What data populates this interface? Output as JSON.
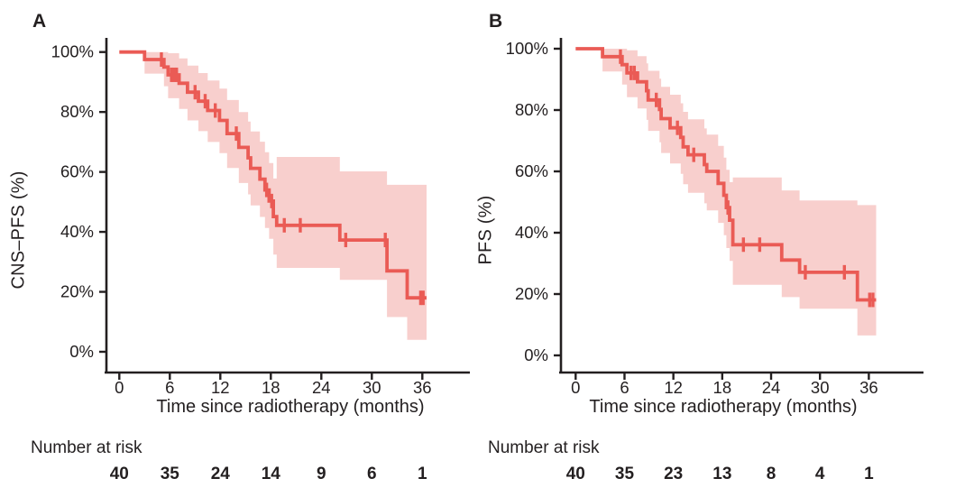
{
  "figure": {
    "title": "",
    "line_color": "#ea5b55",
    "band_color": "#f8cfcd",
    "text_color": "#231f20",
    "axis_color": "#231f20",
    "background": "#ffffff"
  },
  "chart_data": [
    {
      "type": "line",
      "subtype": "kaplan-meier-step",
      "panel_label": "A",
      "series_name": "CNS-PFS",
      "ylabel": "CNS–PFS (%)",
      "xlabel": "Time since radiotherapy (months)",
      "xlim": [
        0,
        38
      ],
      "ylim": [
        0,
        100
      ],
      "grid": false,
      "legend": null,
      "x_tick_values": [
        0,
        6,
        12,
        18,
        24,
        30,
        36
      ],
      "y_tick_values": [
        0,
        20,
        40,
        60,
        80,
        100
      ],
      "y_tick_labels": [
        "0%",
        "20%",
        "40%",
        "60%",
        "80%",
        "100%"
      ],
      "steps": [
        {
          "t": 0.0,
          "s": 100.0,
          "lo": 100.0,
          "hi": 100.0
        },
        {
          "t": 3.0,
          "s": 97.5,
          "lo": 92.8,
          "hi": 100.0
        },
        {
          "t": 5.3,
          "s": 95.0,
          "lo": 88.6,
          "hi": 100.0
        },
        {
          "t": 5.8,
          "s": 92.4,
          "lo": 84.6,
          "hi": 99.6
        },
        {
          "t": 7.1,
          "s": 89.6,
          "lo": 81.0,
          "hi": 97.9
        },
        {
          "t": 8.1,
          "s": 86.6,
          "lo": 77.2,
          "hi": 95.5
        },
        {
          "t": 9.4,
          "s": 83.6,
          "lo": 73.6,
          "hi": 93.0
        },
        {
          "t": 10.5,
          "s": 80.5,
          "lo": 70.0,
          "hi": 90.5
        },
        {
          "t": 11.9,
          "s": 77.2,
          "lo": 66.3,
          "hi": 87.8
        },
        {
          "t": 12.8,
          "s": 72.8,
          "lo": 61.3,
          "hi": 84.0
        },
        {
          "t": 14.2,
          "s": 68.2,
          "lo": 56.3,
          "hi": 80.0
        },
        {
          "t": 15.3,
          "s": 64.7,
          "lo": 52.5,
          "hi": 76.8
        },
        {
          "t": 15.6,
          "s": 61.2,
          "lo": 48.8,
          "hi": 73.5
        },
        {
          "t": 16.7,
          "s": 57.6,
          "lo": 45.0,
          "hi": 70.1
        },
        {
          "t": 17.3,
          "s": 54.0,
          "lo": 41.3,
          "hi": 66.6
        },
        {
          "t": 17.8,
          "s": 50.3,
          "lo": 37.7,
          "hi": 63.0
        },
        {
          "t": 18.3,
          "s": 45.1,
          "lo": 32.4,
          "hi": 57.8
        },
        {
          "t": 18.7,
          "s": 42.2,
          "lo": 28.0,
          "hi": 65.0
        },
        {
          "t": 26.2,
          "s": 37.3,
          "lo": 24.0,
          "hi": 60.2
        },
        {
          "t": 31.8,
          "s": 27.0,
          "lo": 11.6,
          "hi": 55.7
        },
        {
          "t": 34.2,
          "s": 18.0,
          "lo": 4.0,
          "hi": 55.7
        }
      ],
      "line_end_t": 36.5,
      "censors": [
        [
          5.0,
          97.5
        ],
        [
          6.2,
          92.4
        ],
        [
          6.5,
          92.4
        ],
        [
          6.8,
          92.4
        ],
        [
          9.0,
          86.6
        ],
        [
          10.2,
          83.6
        ],
        [
          11.4,
          80.5
        ],
        [
          13.9,
          72.8
        ],
        [
          17.5,
          54.0
        ],
        [
          18.1,
          50.3
        ],
        [
          19.6,
          42.2
        ],
        [
          21.5,
          42.2
        ],
        [
          26.9,
          37.3
        ],
        [
          31.6,
          37.3
        ],
        [
          35.8,
          18.0
        ],
        [
          36.1,
          18.0
        ]
      ],
      "number_at_risk": {
        "label": "Number at risk",
        "times": [
          0,
          6,
          12,
          18,
          24,
          30,
          36
        ],
        "counts": [
          40,
          35,
          24,
          14,
          9,
          6,
          1
        ]
      }
    },
    {
      "type": "line",
      "subtype": "kaplan-meier-step",
      "panel_label": "B",
      "series_name": "PFS",
      "ylabel": "PFS (%)",
      "xlabel": "Time since radiotherapy (months)",
      "xlim": [
        0,
        38
      ],
      "ylim": [
        0,
        100
      ],
      "grid": false,
      "legend": null,
      "x_tick_values": [
        0,
        6,
        12,
        18,
        24,
        30,
        36
      ],
      "y_tick_values": [
        0,
        20,
        40,
        60,
        80,
        100
      ],
      "y_tick_labels": [
        "0%",
        "20%",
        "40%",
        "60%",
        "80%",
        "100%"
      ],
      "steps": [
        {
          "t": 0.0,
          "s": 100.0,
          "lo": 100.0,
          "hi": 100.0
        },
        {
          "t": 3.3,
          "s": 97.4,
          "lo": 92.6,
          "hi": 100.0
        },
        {
          "t": 5.7,
          "s": 94.8,
          "lo": 88.3,
          "hi": 100.0
        },
        {
          "t": 6.3,
          "s": 92.1,
          "lo": 84.2,
          "hi": 99.5
        },
        {
          "t": 7.6,
          "s": 89.2,
          "lo": 80.5,
          "hi": 97.6
        },
        {
          "t": 8.7,
          "s": 86.3,
          "lo": 76.8,
          "hi": 95.2
        },
        {
          "t": 8.9,
          "s": 83.3,
          "lo": 73.2,
          "hi": 92.8
        },
        {
          "t": 10.3,
          "s": 80.2,
          "lo": 69.5,
          "hi": 90.2
        },
        {
          "t": 10.5,
          "s": 77.2,
          "lo": 66.0,
          "hi": 87.6
        },
        {
          "t": 11.6,
          "s": 74.2,
          "lo": 62.6,
          "hi": 85.0
        },
        {
          "t": 12.9,
          "s": 71.1,
          "lo": 59.2,
          "hi": 82.2
        },
        {
          "t": 13.2,
          "s": 68.0,
          "lo": 55.8,
          "hi": 79.4
        },
        {
          "t": 13.8,
          "s": 65.4,
          "lo": 53.0,
          "hi": 77.0
        },
        {
          "t": 15.8,
          "s": 62.2,
          "lo": 49.6,
          "hi": 74.0
        },
        {
          "t": 16.1,
          "s": 60.0,
          "lo": 47.3,
          "hi": 72.0
        },
        {
          "t": 17.5,
          "s": 56.1,
          "lo": 43.2,
          "hi": 68.3
        },
        {
          "t": 18.2,
          "s": 52.2,
          "lo": 39.2,
          "hi": 64.5
        },
        {
          "t": 18.5,
          "s": 48.2,
          "lo": 35.0,
          "hi": 60.5
        },
        {
          "t": 18.9,
          "s": 44.1,
          "lo": 30.8,
          "hi": 56.5
        },
        {
          "t": 19.3,
          "s": 36.1,
          "lo": 23.0,
          "hi": 58.0
        },
        {
          "t": 25.3,
          "s": 31.1,
          "lo": 19.0,
          "hi": 53.8
        },
        {
          "t": 27.5,
          "s": 27.1,
          "lo": 15.2,
          "hi": 50.5
        },
        {
          "t": 34.6,
          "s": 18.1,
          "lo": 6.5,
          "hi": 49.0
        }
      ],
      "line_end_t": 36.9,
      "censors": [
        [
          5.5,
          97.4
        ],
        [
          6.8,
          92.1
        ],
        [
          7.2,
          92.1
        ],
        [
          9.9,
          83.3
        ],
        [
          12.5,
          74.2
        ],
        [
          14.5,
          65.4
        ],
        [
          18.7,
          48.2
        ],
        [
          20.6,
          36.1
        ],
        [
          22.6,
          36.1
        ],
        [
          28.2,
          27.1
        ],
        [
          33.0,
          27.1
        ],
        [
          36.1,
          18.1
        ],
        [
          36.5,
          18.1
        ]
      ],
      "number_at_risk": {
        "label": "Number at risk",
        "times": [
          0,
          6,
          12,
          18,
          24,
          30,
          36
        ],
        "counts": [
          40,
          35,
          23,
          13,
          8,
          4,
          1
        ]
      }
    }
  ]
}
